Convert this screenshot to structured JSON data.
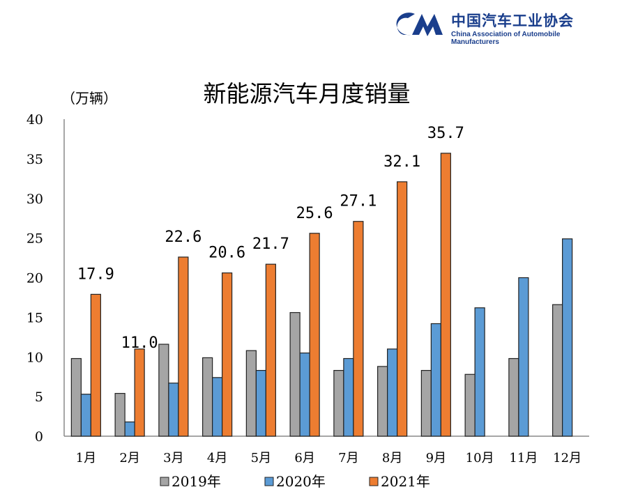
{
  "logo": {
    "name_cn": "中国汽车工业协会",
    "name_en": "China Association of Automobile Manufacturers",
    "mark": "CAAM"
  },
  "chart_data": {
    "type": "bar",
    "title": "新能源汽车月度销量",
    "ylabel": "（万辆）",
    "ylim": [
      0,
      40
    ],
    "yticks": [
      0,
      5,
      10,
      15,
      20,
      25,
      30,
      35,
      40
    ],
    "grid": false,
    "legend_position": "bottom",
    "categories": [
      "1月",
      "2月",
      "3月",
      "4月",
      "5月",
      "6月",
      "7月",
      "8月",
      "9月",
      "10月",
      "11月",
      "12月"
    ],
    "series": [
      {
        "name": "2019年",
        "color": "#a5a5a5",
        "values": [
          9.8,
          5.4,
          11.6,
          9.9,
          10.8,
          15.6,
          8.3,
          8.8,
          8.3,
          7.8,
          9.8,
          16.6
        ]
      },
      {
        "name": "2020年",
        "color": "#5b9bd5",
        "values": [
          5.3,
          1.8,
          6.7,
          7.4,
          8.3,
          10.5,
          9.8,
          11.0,
          14.2,
          16.2,
          20.0,
          24.9
        ]
      },
      {
        "name": "2021年",
        "color": "#ed7d31",
        "values": [
          17.9,
          11.0,
          22.6,
          20.6,
          21.7,
          25.6,
          27.1,
          32.1,
          35.7,
          null,
          null,
          null
        ],
        "data_labels": [
          "17.9",
          "11.0",
          "22.6",
          "20.6",
          "21.7",
          "25.6",
          "27.1",
          "32.1",
          "35.7"
        ]
      }
    ]
  }
}
